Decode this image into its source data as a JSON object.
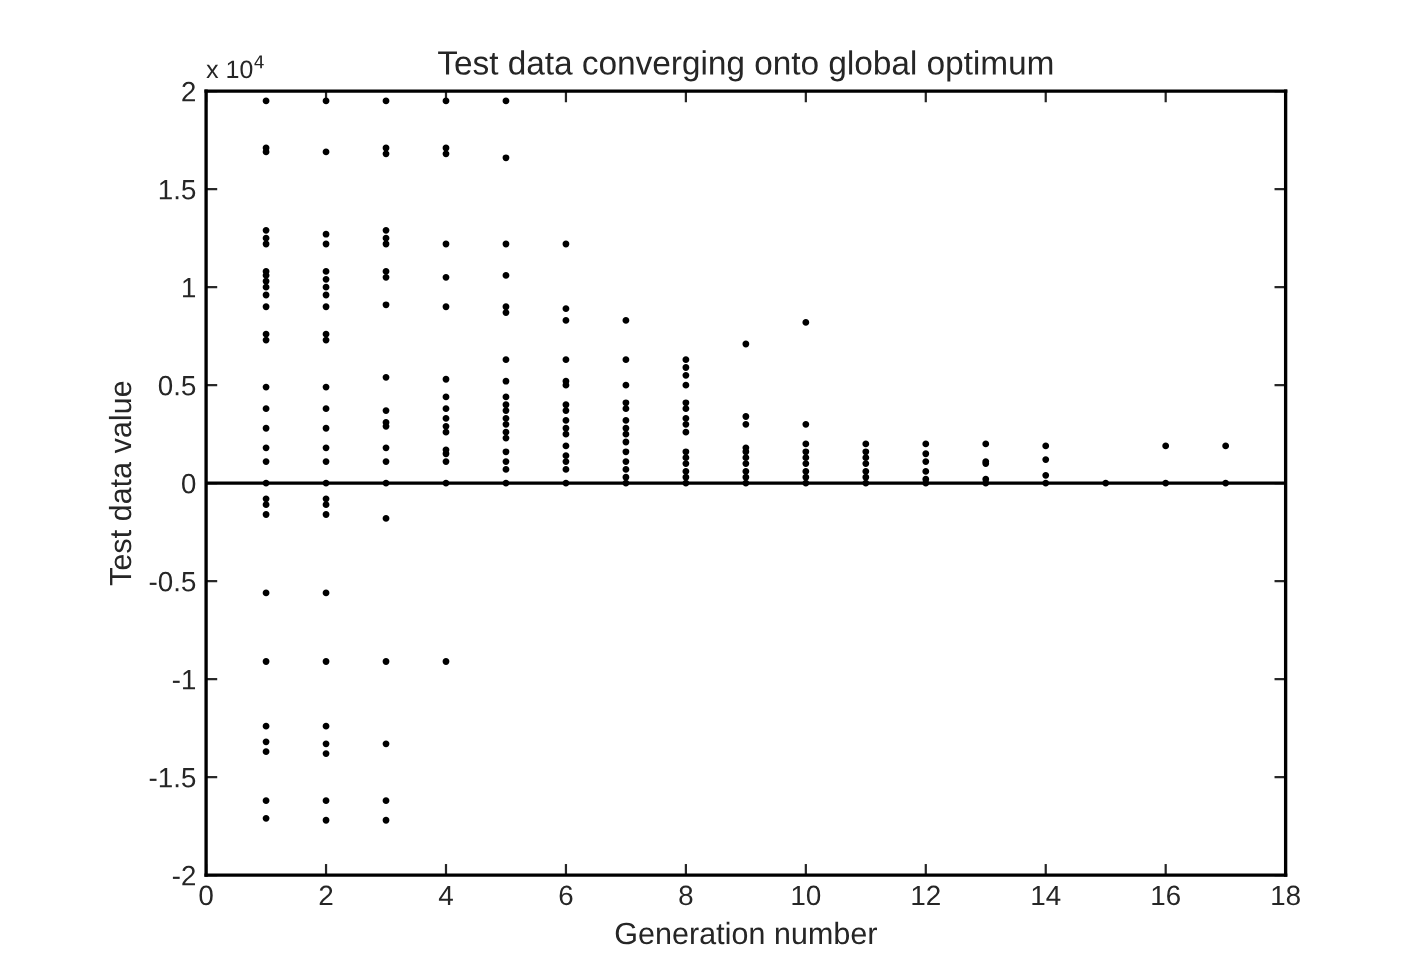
{
  "chart_data": {
    "type": "scatter",
    "title": "Test data converging onto global optimum",
    "xlabel": "Generation number",
    "ylabel": "Test data value",
    "annotations": [
      "x 10$^{4}$"
    ],
    "xlim": [
      0,
      18
    ],
    "xticks": [
      0,
      2,
      4,
      6,
      8,
      10,
      12,
      14,
      16,
      18
    ],
    "ylim": [
      -2,
      2
    ],
    "yticks": [
      -2,
      -1.5,
      -1,
      -0.5,
      0,
      0.5,
      1,
      1.5,
      2
    ],
    "grid": false,
    "legend": false,
    "marker": "circle",
    "ref_lines": [
      {
        "axis": "y",
        "value": 0,
        "color": "#000000",
        "line_style": "solid"
      }
    ],
    "series": [
      {
        "color": "#000000",
        "x": [
          1,
          1,
          1,
          1,
          1,
          1,
          1,
          1,
          1,
          1,
          1,
          1,
          1,
          1,
          1,
          1,
          1,
          1,
          1,
          1,
          1,
          1,
          1,
          1,
          1,
          1,
          1,
          1,
          1,
          1,
          2,
          2,
          2,
          2,
          2,
          2,
          2,
          2,
          2,
          2,
          2,
          2,
          2,
          2,
          2,
          2,
          2,
          2,
          2,
          2,
          2,
          2,
          2,
          2,
          2,
          2,
          2,
          3,
          3,
          3,
          3,
          3,
          3,
          3,
          3,
          3,
          3,
          3,
          3,
          3,
          3,
          3,
          3,
          3,
          3,
          3,
          3,
          3,
          4,
          4,
          4,
          4,
          4,
          4,
          4,
          4,
          4,
          4,
          4,
          4,
          4,
          4,
          4,
          4,
          4,
          5,
          5,
          5,
          5,
          5,
          5,
          5,
          5,
          5,
          5,
          5,
          5,
          5,
          5,
          5,
          5,
          5,
          5,
          5,
          6,
          6,
          6,
          6,
          6,
          6,
          6,
          6,
          6,
          6,
          6,
          6,
          6,
          6,
          6,
          6,
          7,
          7,
          7,
          7,
          7,
          7,
          7,
          7,
          7,
          7,
          7,
          7,
          7,
          7,
          8,
          8,
          8,
          8,
          8,
          8,
          8,
          8,
          8,
          8,
          8,
          8,
          8,
          8,
          8,
          9,
          9,
          9,
          9,
          9,
          9,
          9,
          9,
          9,
          9,
          10,
          10,
          10,
          10,
          10,
          10,
          10,
          10,
          10,
          11,
          11,
          11,
          11,
          11,
          11,
          11,
          12,
          12,
          12,
          12,
          12,
          12,
          13,
          13,
          13,
          13,
          13,
          14,
          14,
          14,
          14,
          15,
          16,
          16,
          17,
          17
        ],
        "values": [
          1.95,
          1.71,
          1.69,
          1.29,
          1.25,
          1.22,
          1.08,
          1.06,
          1.03,
          1.0,
          0.96,
          0.9,
          0.76,
          0.73,
          0.49,
          0.38,
          0.28,
          0.18,
          0.11,
          0,
          -0.08,
          -0.11,
          -0.16,
          -0.56,
          -0.91,
          -1.24,
          -1.32,
          -1.37,
          -1.62,
          -1.71,
          1.95,
          1.69,
          1.27,
          1.22,
          1.08,
          1.04,
          1.0,
          0.96,
          0.9,
          0.76,
          0.73,
          0.49,
          0.38,
          0.28,
          0.18,
          0.11,
          0,
          -0.08,
          -0.11,
          -0.16,
          -0.56,
          -0.91,
          -1.24,
          -1.33,
          -1.38,
          -1.62,
          -1.72,
          1.95,
          1.71,
          1.68,
          1.29,
          1.25,
          1.22,
          1.08,
          1.05,
          0.91,
          0.54,
          0.37,
          0.31,
          0.29,
          0.18,
          0.11,
          0,
          -0.18,
          -0.91,
          -1.33,
          -1.62,
          -1.72,
          1.95,
          1.71,
          1.68,
          1.22,
          1.05,
          0.9,
          0.53,
          0.44,
          0.38,
          0.33,
          0.29,
          0.26,
          0.17,
          0.15,
          0.11,
          0,
          -0.91,
          1.95,
          1.66,
          1.22,
          1.06,
          0.9,
          0.87,
          0.63,
          0.52,
          0.44,
          0.4,
          0.37,
          0.33,
          0.3,
          0.26,
          0.23,
          0.16,
          0.11,
          0.07,
          0,
          1.22,
          0.89,
          0.83,
          0.63,
          0.52,
          0.5,
          0.4,
          0.37,
          0.32,
          0.28,
          0.25,
          0.19,
          0.14,
          0.11,
          0.07,
          0,
          0.83,
          0.63,
          0.5,
          0.41,
          0.38,
          0.32,
          0.28,
          0.25,
          0.21,
          0.16,
          0.11,
          0.07,
          0.03,
          0,
          0.63,
          0.59,
          0.55,
          0.5,
          0.41,
          0.38,
          0.33,
          0.3,
          0.26,
          0.16,
          0.13,
          0.1,
          0.06,
          0.03,
          0,
          0.71,
          0.34,
          0.3,
          0.18,
          0.16,
          0.13,
          0.1,
          0.06,
          0.03,
          0,
          0.82,
          0.3,
          0.2,
          0.16,
          0.13,
          0.1,
          0.06,
          0.03,
          0,
          0.2,
          0.16,
          0.13,
          0.1,
          0.06,
          0.03,
          0,
          0.2,
          0.15,
          0.11,
          0.06,
          0.02,
          0,
          0.2,
          0.11,
          0.1,
          0.02,
          0,
          0.19,
          0.12,
          0.04,
          0,
          0,
          0.19,
          0,
          0.19,
          0
        ]
      }
    ]
  }
}
